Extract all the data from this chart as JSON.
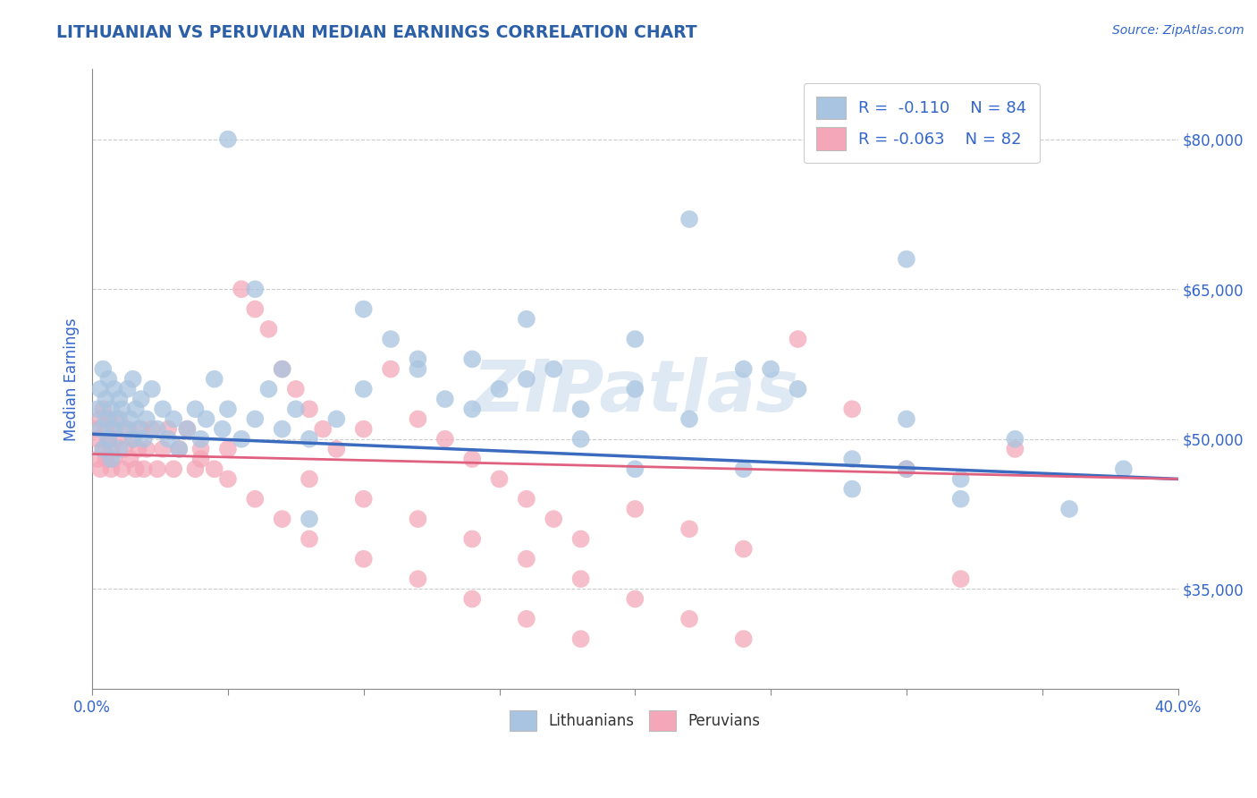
{
  "title": "LITHUANIAN VS PERUVIAN MEDIAN EARNINGS CORRELATION CHART",
  "source_text": "Source: ZipAtlas.com",
  "ylabel": "Median Earnings",
  "watermark": "ZIPatlas",
  "xlim": [
    0.0,
    0.4
  ],
  "ylim": [
    25000,
    87000
  ],
  "xticks": [
    0.0,
    0.05,
    0.1,
    0.15,
    0.2,
    0.25,
    0.3,
    0.35,
    0.4
  ],
  "xticklabels": [
    "0.0%",
    "",
    "",
    "",
    "",
    "",
    "",
    "",
    "40.0%"
  ],
  "yticks": [
    35000,
    50000,
    65000,
    80000
  ],
  "yticklabels": [
    "$35,000",
    "$50,000",
    "$65,000",
    "$80,000"
  ],
  "legend_label1": "Lithuanians",
  "legend_label2": "Peruvians",
  "color_lithuanian": "#a8c4e0",
  "color_peruvian": "#f4a7b9",
  "color_trend_lithuanian": "#3a6bbf",
  "color_trend_peruvian": "#e06080",
  "title_color": "#2b5fa8",
  "axis_label_color": "#3366cc",
  "tick_color": "#3366cc",
  "background_color": "#ffffff",
  "grid_color": "#cccccc",
  "R1": -0.11,
  "N1": 84,
  "R2": -0.063,
  "N2": 82,
  "trend_lith_y0": 50500,
  "trend_lith_y1": 46000,
  "trend_peru_y0": 48500,
  "trend_peru_y1": 46000,
  "lith_x": [
    0.002,
    0.003,
    0.003,
    0.004,
    0.004,
    0.005,
    0.005,
    0.006,
    0.006,
    0.007,
    0.007,
    0.008,
    0.008,
    0.009,
    0.01,
    0.01,
    0.011,
    0.012,
    0.013,
    0.014,
    0.015,
    0.015,
    0.016,
    0.017,
    0.018,
    0.019,
    0.02,
    0.022,
    0.024,
    0.026,
    0.028,
    0.03,
    0.032,
    0.035,
    0.038,
    0.04,
    0.042,
    0.045,
    0.048,
    0.05,
    0.055,
    0.06,
    0.065,
    0.07,
    0.075,
    0.08,
    0.09,
    0.1,
    0.11,
    0.12,
    0.13,
    0.14,
    0.15,
    0.16,
    0.17,
    0.18,
    0.2,
    0.22,
    0.24,
    0.26,
    0.28,
    0.3,
    0.32,
    0.34,
    0.36,
    0.38,
    0.1,
    0.12,
    0.14,
    0.16,
    0.18,
    0.2,
    0.22,
    0.24,
    0.3,
    0.32,
    0.2,
    0.25,
    0.28,
    0.3,
    0.05,
    0.06,
    0.07,
    0.08
  ],
  "lith_y": [
    53000,
    55000,
    51000,
    57000,
    49000,
    52000,
    54000,
    50000,
    56000,
    53000,
    48000,
    51000,
    55000,
    52000,
    54000,
    49000,
    53000,
    51000,
    55000,
    52000,
    56000,
    50000,
    53000,
    51000,
    54000,
    50000,
    52000,
    55000,
    51000,
    53000,
    50000,
    52000,
    49000,
    51000,
    53000,
    50000,
    52000,
    56000,
    51000,
    53000,
    50000,
    52000,
    55000,
    51000,
    53000,
    50000,
    52000,
    55000,
    60000,
    57000,
    54000,
    58000,
    55000,
    62000,
    57000,
    53000,
    55000,
    52000,
    57000,
    55000,
    48000,
    52000,
    46000,
    50000,
    43000,
    47000,
    63000,
    58000,
    53000,
    56000,
    50000,
    47000,
    72000,
    47000,
    68000,
    44000,
    60000,
    57000,
    45000,
    47000,
    80000,
    65000,
    57000,
    42000
  ],
  "peru_x": [
    0.001,
    0.002,
    0.002,
    0.003,
    0.003,
    0.004,
    0.004,
    0.005,
    0.005,
    0.006,
    0.006,
    0.007,
    0.007,
    0.008,
    0.008,
    0.009,
    0.01,
    0.011,
    0.012,
    0.013,
    0.014,
    0.015,
    0.016,
    0.017,
    0.018,
    0.019,
    0.02,
    0.022,
    0.024,
    0.026,
    0.028,
    0.03,
    0.032,
    0.035,
    0.038,
    0.04,
    0.045,
    0.05,
    0.055,
    0.06,
    0.065,
    0.07,
    0.075,
    0.08,
    0.085,
    0.09,
    0.1,
    0.11,
    0.12,
    0.13,
    0.14,
    0.15,
    0.16,
    0.17,
    0.18,
    0.2,
    0.22,
    0.24,
    0.26,
    0.28,
    0.3,
    0.32,
    0.34,
    0.08,
    0.1,
    0.12,
    0.14,
    0.16,
    0.18,
    0.2,
    0.22,
    0.24,
    0.04,
    0.05,
    0.06,
    0.07,
    0.08,
    0.1,
    0.12,
    0.14,
    0.16,
    0.18
  ],
  "peru_y": [
    51000,
    50000,
    48000,
    52000,
    47000,
    53000,
    49000,
    51000,
    48000,
    50000,
    52000,
    47000,
    49000,
    51000,
    48000,
    50000,
    52000,
    47000,
    49000,
    51000,
    48000,
    50000,
    47000,
    49000,
    51000,
    47000,
    49000,
    51000,
    47000,
    49000,
    51000,
    47000,
    49000,
    51000,
    47000,
    49000,
    47000,
    49000,
    65000,
    63000,
    61000,
    57000,
    55000,
    53000,
    51000,
    49000,
    51000,
    57000,
    52000,
    50000,
    48000,
    46000,
    44000,
    42000,
    40000,
    43000,
    41000,
    39000,
    60000,
    53000,
    47000,
    36000,
    49000,
    46000,
    44000,
    42000,
    40000,
    38000,
    36000,
    34000,
    32000,
    30000,
    48000,
    46000,
    44000,
    42000,
    40000,
    38000,
    36000,
    34000,
    32000,
    30000
  ]
}
